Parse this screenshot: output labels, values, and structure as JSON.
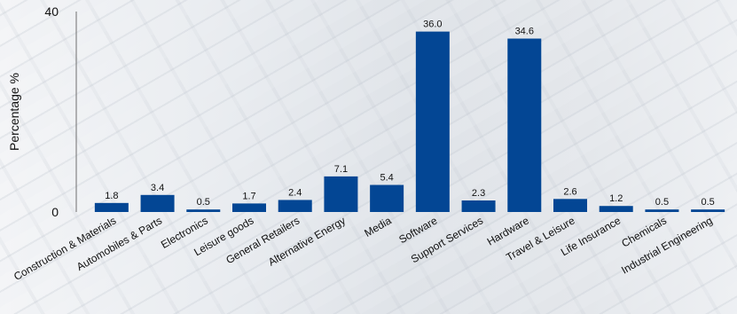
{
  "chart_data": {
    "type": "bar",
    "title": "",
    "xlabel": "",
    "ylabel": "Percentage %",
    "ylim": [
      0,
      40
    ],
    "y_ticks": [
      "0",
      "40"
    ],
    "grid": false,
    "bar_color": "#034694",
    "categories": [
      "Construction & Materials",
      "Automobiles & Parts",
      "Electronics",
      "Leisure goods",
      "General Retailers",
      "Alternative Energy",
      "Media",
      "Software",
      "Support Services",
      "Hardware",
      "Travel & Leisure",
      "Life Insurance",
      "Chemicals",
      "Industrial Engineering"
    ],
    "values": [
      1.8,
      3.4,
      0.5,
      1.7,
      2.4,
      7.1,
      5.4,
      36.0,
      2.3,
      34.6,
      2.6,
      1.2,
      0.5,
      0.5
    ],
    "value_labels": [
      "1.8",
      "3.4",
      "0.5",
      "1.7",
      "2.4",
      "7.1",
      "5.4",
      "36.0",
      "2.3",
      "34.6",
      "2.6",
      "1.2",
      "0.5",
      "0.5"
    ]
  }
}
